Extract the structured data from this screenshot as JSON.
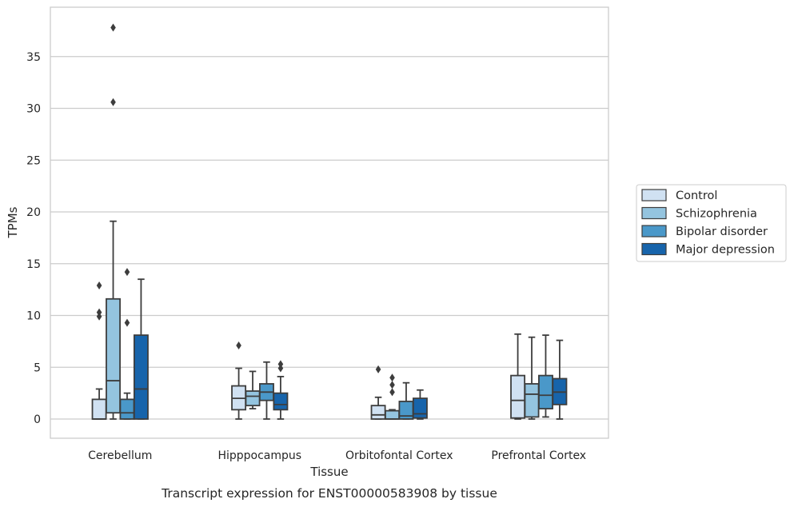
{
  "chart_data": {
    "type": "box",
    "caption": "Transcript expression for ENST00000583908 by tissue",
    "xlabel": "Tissue",
    "ylabel": "TPMs",
    "ylim": [
      -1.8,
      39.5
    ],
    "yticks": [
      0,
      5,
      10,
      15,
      20,
      25,
      30,
      35
    ],
    "grid": "horizontal",
    "legend_position": "right",
    "categories": [
      "Cerebellum",
      "Hipppocampus",
      "Orbitofontal Cortex",
      "Prefrontal Cortex"
    ],
    "series": [
      {
        "name": "Control",
        "color": "#d0e1f2",
        "boxes": [
          {
            "whislo": 0.0,
            "q1": 0.0,
            "med": 0.0,
            "q3": 1.9,
            "whishi": 2.9,
            "fliers": [
              9.9,
              10.3,
              12.9
            ]
          },
          {
            "whislo": 0.0,
            "q1": 0.9,
            "med": 2.0,
            "q3": 3.2,
            "whishi": 4.9,
            "fliers": [
              7.1
            ]
          },
          {
            "whislo": 0.0,
            "q1": 0.0,
            "med": 0.4,
            "q3": 1.3,
            "whishi": 2.1,
            "fliers": [
              4.8
            ]
          },
          {
            "whislo": 0.0,
            "q1": 0.1,
            "med": 1.8,
            "q3": 4.2,
            "whishi": 8.2,
            "fliers": []
          }
        ]
      },
      {
        "name": "Schizophrenia",
        "color": "#94c4df",
        "boxes": [
          {
            "whislo": 0.0,
            "q1": 0.6,
            "med": 3.7,
            "q3": 11.6,
            "whishi": 19.1,
            "fliers": [
              30.6,
              37.8
            ]
          },
          {
            "whislo": 1.0,
            "q1": 1.3,
            "med": 2.2,
            "q3": 2.7,
            "whishi": 4.6,
            "fliers": []
          },
          {
            "whislo": 0.0,
            "q1": 0.0,
            "med": 0.0,
            "q3": 0.8,
            "whishi": 0.9,
            "fliers": [
              2.6,
              3.3,
              4.0
            ]
          },
          {
            "whislo": 0.0,
            "q1": 0.2,
            "med": 2.4,
            "q3": 3.4,
            "whishi": 7.9,
            "fliers": []
          }
        ]
      },
      {
        "name": "Bipolar disorder",
        "color": "#4a98c9",
        "boxes": [
          {
            "whislo": 0.0,
            "q1": 0.0,
            "med": 0.6,
            "q3": 1.9,
            "whishi": 2.5,
            "fliers": [
              9.3,
              14.2
            ]
          },
          {
            "whislo": 0.0,
            "q1": 1.8,
            "med": 2.6,
            "q3": 3.4,
            "whishi": 5.5,
            "fliers": []
          },
          {
            "whislo": 0.0,
            "q1": 0.0,
            "med": 0.3,
            "q3": 1.7,
            "whishi": 3.5,
            "fliers": []
          },
          {
            "whislo": 0.2,
            "q1": 1.0,
            "med": 2.3,
            "q3": 4.2,
            "whishi": 8.1,
            "fliers": []
          }
        ]
      },
      {
        "name": "Major depression",
        "color": "#1764ab",
        "boxes": [
          {
            "whislo": 0.0,
            "q1": 0.0,
            "med": 2.9,
            "q3": 8.1,
            "whishi": 13.5,
            "fliers": []
          },
          {
            "whislo": 0.0,
            "q1": 0.9,
            "med": 1.4,
            "q3": 2.5,
            "whishi": 4.1,
            "fliers": [
              4.9,
              5.3
            ]
          },
          {
            "whislo": 0.0,
            "q1": 0.1,
            "med": 0.5,
            "q3": 2.0,
            "whishi": 2.8,
            "fliers": []
          },
          {
            "whislo": 0.0,
            "q1": 1.4,
            "med": 2.6,
            "q3": 3.9,
            "whishi": 7.6,
            "fliers": []
          }
        ]
      }
    ]
  }
}
